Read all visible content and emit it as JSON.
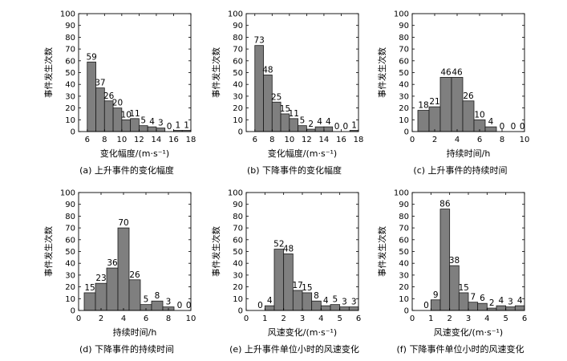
{
  "chart_data": [
    {
      "type": "bar",
      "caption": "(a) 上升事件的变化幅度",
      "xlabel": "变化幅度/(m·s⁻¹)",
      "ylabel": "事件发生次数",
      "ylim": [
        0,
        100
      ],
      "yticks": [
        0,
        10,
        20,
        30,
        40,
        50,
        60,
        70,
        80,
        90,
        100
      ],
      "xlim": [
        5,
        18
      ],
      "xticks": [
        6,
        8,
        10,
        12,
        14,
        16,
        18
      ],
      "bin_edges": [
        6,
        7,
        8,
        9,
        10,
        11,
        12,
        13,
        14,
        15,
        16,
        17,
        18
      ],
      "values": [
        59,
        37,
        26,
        20,
        10,
        11,
        5,
        4,
        3,
        0,
        1,
        1
      ],
      "labels": [
        "59",
        "37",
        "26",
        "20",
        "10",
        "11",
        "5",
        "4",
        "3",
        "0",
        "1",
        "1"
      ]
    },
    {
      "type": "bar",
      "caption": "(b) 下降事件的变化幅度",
      "xlabel": "变化幅度/(m·s⁻¹)",
      "ylabel": "事件发生次数",
      "ylim": [
        0,
        100
      ],
      "yticks": [
        0,
        10,
        20,
        30,
        40,
        50,
        60,
        70,
        80,
        90,
        100
      ],
      "xlim": [
        5,
        18
      ],
      "xticks": [
        6,
        8,
        10,
        12,
        14,
        16,
        18
      ],
      "bin_edges": [
        6,
        7,
        8,
        9,
        10,
        11,
        12,
        13,
        14,
        15,
        16,
        17,
        18
      ],
      "values": [
        73,
        48,
        25,
        15,
        11,
        5,
        2,
        4,
        4,
        0,
        0,
        1
      ],
      "labels": [
        "73",
        "48",
        "25",
        "15",
        "11",
        "5",
        "2",
        "4",
        "4",
        "0",
        "0",
        "1"
      ]
    },
    {
      "type": "bar",
      "caption": "(c) 上升事件的持续时间",
      "xlabel": "持续时间/h",
      "ylabel": "事件发生次数",
      "ylim": [
        0,
        100
      ],
      "yticks": [
        0,
        10,
        20,
        30,
        40,
        50,
        60,
        70,
        80,
        90,
        100
      ],
      "xlim": [
        0,
        10
      ],
      "xticks": [
        0,
        2,
        4,
        6,
        8,
        10
      ],
      "bin_edges": [
        0.5,
        1.5,
        2.5,
        3.5,
        4.5,
        5.5,
        6.5,
        7.5,
        8.5,
        9.5
      ],
      "values": [
        18,
        21,
        46,
        46,
        26,
        10,
        4,
        0,
        0
      ],
      "labels": [
        "18",
        "21",
        "46",
        "46",
        "26",
        "10",
        "4",
        "0",
        "0"
      ],
      "extra_labels": [
        {
          "x": 9.8,
          "text": "0"
        }
      ]
    },
    {
      "type": "bar",
      "caption": "(d) 下降事件的持续时间",
      "xlabel": "持续时间/h",
      "ylabel": "事件发生次数",
      "ylim": [
        0,
        100
      ],
      "yticks": [
        0,
        10,
        20,
        30,
        40,
        50,
        60,
        70,
        80,
        90,
        100
      ],
      "xlim": [
        0,
        10
      ],
      "xticks": [
        0,
        2,
        4,
        6,
        8,
        10
      ],
      "bin_edges": [
        0.5,
        1.5,
        2.5,
        3.5,
        4.5,
        5.5,
        6.5,
        7.5,
        8.5,
        9.5
      ],
      "values": [
        15,
        23,
        36,
        70,
        26,
        5,
        8,
        3,
        0
      ],
      "labels": [
        "15",
        "23",
        "36",
        "70",
        "26",
        "5",
        "8",
        "3",
        "0"
      ],
      "extra_labels": [
        {
          "x": 9.8,
          "text": "0"
        }
      ]
    },
    {
      "type": "bar",
      "caption": "(e) 上升事件单位小时的风速变化",
      "xlabel": "风速变化/(m·s⁻¹)",
      "ylabel": "事件发生次数",
      "ylim": [
        0,
        100
      ],
      "yticks": [
        0,
        10,
        20,
        30,
        40,
        50,
        60,
        70,
        80,
        90,
        100
      ],
      "xlim": [
        0,
        6
      ],
      "xticks": [
        0,
        1,
        2,
        3,
        4,
        5,
        6
      ],
      "bin_edges": [
        1.0,
        1.5,
        2.0,
        2.5,
        3.0,
        3.5,
        4.0,
        4.5,
        5.0,
        5.5,
        6.0
      ],
      "values": [
        4,
        52,
        48,
        17,
        15,
        8,
        4,
        5,
        3,
        3
      ],
      "labels": [
        "4",
        "52",
        "48",
        "17",
        "15",
        "8",
        "4",
        "5",
        "3",
        "3"
      ],
      "extra_labels": [
        {
          "x": 0.75,
          "text": "0"
        }
      ]
    },
    {
      "type": "bar",
      "caption": "(f) 下降事件单位小时的风速变化",
      "xlabel": "风速变化/(m·s⁻¹)",
      "ylabel": "事件发生次数",
      "ylim": [
        0,
        100
      ],
      "yticks": [
        0,
        10,
        20,
        30,
        40,
        50,
        60,
        70,
        80,
        90,
        100
      ],
      "xlim": [
        0,
        6
      ],
      "xticks": [
        0,
        1,
        2,
        3,
        4,
        5,
        6
      ],
      "bin_edges": [
        1.0,
        1.5,
        2.0,
        2.5,
        3.0,
        3.5,
        4.0,
        4.5,
        5.0,
        5.5,
        6.0
      ],
      "values": [
        9,
        86,
        38,
        15,
        7,
        6,
        2,
        4,
        3,
        4
      ],
      "labels": [
        "9",
        "86",
        "38",
        "15",
        "7",
        "6",
        "2",
        "4",
        "3",
        "4"
      ],
      "extra_labels": [
        {
          "x": 0.75,
          "text": "0"
        }
      ]
    }
  ],
  "colors": {
    "bar_fill": "#7f7f7f",
    "bar_stroke": "#1a1a1a",
    "axis": "#000000"
  }
}
